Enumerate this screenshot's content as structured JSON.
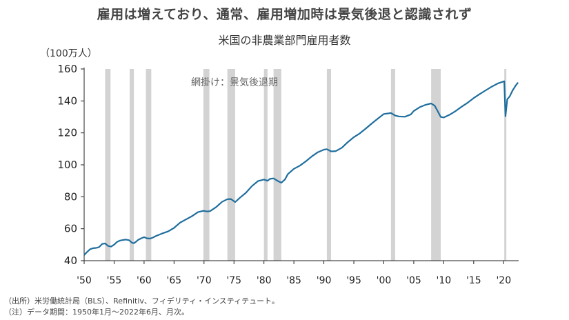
{
  "headline": "雇用は増えており、通常、雇用増加時は景気後退と認識されず",
  "chart_data": {
    "type": "line",
    "title": "米国の非農業部門雇用者数",
    "unit_label": "（100万人）",
    "annotation": "網掛け：景気後退期",
    "ylim": [
      40,
      160
    ],
    "y_ticks": [
      40,
      60,
      80,
      100,
      120,
      140,
      160
    ],
    "x_ticks": [
      {
        "year": 1950,
        "label": "'50"
      },
      {
        "year": 1955,
        "label": "'55"
      },
      {
        "year": 1960,
        "label": "'60"
      },
      {
        "year": 1965,
        "label": "'65"
      },
      {
        "year": 1970,
        "label": "'70"
      },
      {
        "year": 1975,
        "label": "'75"
      },
      {
        "year": 1980,
        "label": "'80"
      },
      {
        "year": 1985,
        "label": "'85"
      },
      {
        "year": 1990,
        "label": "'90"
      },
      {
        "year": 1995,
        "label": "'95"
      },
      {
        "year": 2000,
        "label": "'00"
      },
      {
        "year": 2005,
        "label": "'05"
      },
      {
        "year": 2010,
        "label": "'10"
      },
      {
        "year": 2015,
        "label": "'15"
      },
      {
        "year": 2020,
        "label": "'20"
      }
    ],
    "xlim": [
      1950.0,
      2022.5
    ],
    "recessions": [
      [
        1953.5,
        1954.4
      ],
      [
        1957.6,
        1958.3
      ],
      [
        1960.3,
        1961.2
      ],
      [
        1969.9,
        1970.9
      ],
      [
        1973.9,
        1975.2
      ],
      [
        1980.0,
        1980.6
      ],
      [
        1981.6,
        1982.9
      ],
      [
        1990.5,
        1991.2
      ],
      [
        2001.2,
        2001.9
      ],
      [
        2007.9,
        2009.5
      ],
      [
        2020.1,
        2020.4
      ]
    ],
    "series": [
      {
        "color": "#1f6e9e",
        "x": [
          1950.0,
          1950.5,
          1951.0,
          1951.5,
          1952.0,
          1952.5,
          1953.0,
          1953.5,
          1954.0,
          1954.5,
          1955.0,
          1955.5,
          1956.0,
          1956.5,
          1957.0,
          1957.5,
          1958.0,
          1958.3,
          1958.7,
          1959.0,
          1959.5,
          1960.0,
          1960.5,
          1961.0,
          1961.5,
          1962.0,
          1963.0,
          1964.0,
          1965.0,
          1966.0,
          1967.0,
          1968.0,
          1969.0,
          1969.9,
          1970.5,
          1971.0,
          1972.0,
          1973.0,
          1973.9,
          1974.5,
          1975.2,
          1976.0,
          1977.0,
          1978.0,
          1979.0,
          1980.0,
          1980.6,
          1981.0,
          1981.6,
          1982.5,
          1982.9,
          1983.5,
          1984.0,
          1985.0,
          1986.0,
          1987.0,
          1988.0,
          1989.0,
          1990.0,
          1990.5,
          1991.2,
          1992.0,
          1993.0,
          1994.0,
          1995.0,
          1996.0,
          1997.0,
          1998.0,
          1999.0,
          2000.0,
          2001.2,
          2001.9,
          2002.5,
          2003.5,
          2004.5,
          2005.0,
          2006.0,
          2007.0,
          2007.9,
          2008.5,
          2009.0,
          2009.5,
          2010.0,
          2011.0,
          2012.0,
          2013.0,
          2014.0,
          2015.0,
          2016.0,
          2017.0,
          2018.0,
          2019.0,
          2020.1,
          2020.3,
          2020.6,
          2021.0,
          2021.5,
          2022.0,
          2022.4
        ],
        "values": [
          43.5,
          45.5,
          47.2,
          47.8,
          48.0,
          48.5,
          50.5,
          50.8,
          49.2,
          48.8,
          50.0,
          51.8,
          52.6,
          53.0,
          53.2,
          52.8,
          51.2,
          50.9,
          52.0,
          53.0,
          54.0,
          54.7,
          54.0,
          53.8,
          54.5,
          55.5,
          57.0,
          58.3,
          60.5,
          63.8,
          65.8,
          67.9,
          70.4,
          71.2,
          70.8,
          71.0,
          73.5,
          76.8,
          78.5,
          78.6,
          76.7,
          79.4,
          82.5,
          86.7,
          89.8,
          90.8,
          90.0,
          91.2,
          91.5,
          89.5,
          88.8,
          90.8,
          94.2,
          97.5,
          99.5,
          102.2,
          105.3,
          107.9,
          109.5,
          109.8,
          108.4,
          108.6,
          110.7,
          114.2,
          117.3,
          119.7,
          122.7,
          125.9,
          128.9,
          131.8,
          132.4,
          130.8,
          130.3,
          130.1,
          131.5,
          133.7,
          136.1,
          137.6,
          138.4,
          137.0,
          133.5,
          130.0,
          129.6,
          131.4,
          133.7,
          136.4,
          138.9,
          141.8,
          144.3,
          146.6,
          148.9,
          150.9,
          152.3,
          130.4,
          141.0,
          142.8,
          146.6,
          149.6,
          151.5
        ]
      }
    ]
  },
  "notes": [
    "（出所）米労働統計局（BLS）、Refinitiv、フィデリティ・インスティテュート。",
    "（注）データ期間：1950年1月〜2022年6月、月次。"
  ]
}
